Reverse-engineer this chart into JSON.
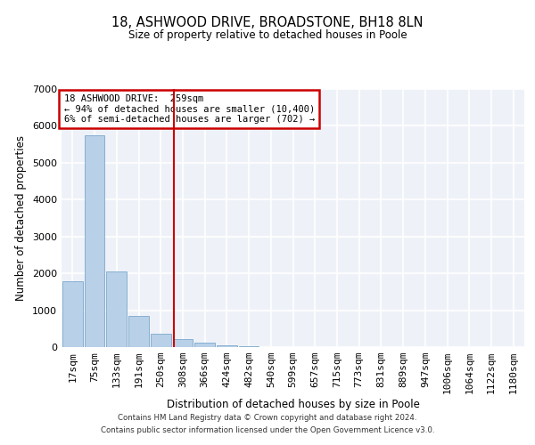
{
  "title": "18, ASHWOOD DRIVE, BROADSTONE, BH18 8LN",
  "subtitle": "Size of property relative to detached houses in Poole",
  "xlabel": "Distribution of detached houses by size in Poole",
  "ylabel": "Number of detached properties",
  "bar_labels": [
    "17sqm",
    "75sqm",
    "133sqm",
    "191sqm",
    "250sqm",
    "308sqm",
    "366sqm",
    "424sqm",
    "482sqm",
    "540sqm",
    "599sqm",
    "657sqm",
    "715sqm",
    "773sqm",
    "831sqm",
    "889sqm",
    "947sqm",
    "1006sqm",
    "1064sqm",
    "1122sqm",
    "1180sqm"
  ],
  "bar_values": [
    1780,
    5750,
    2050,
    840,
    370,
    220,
    110,
    60,
    30,
    10,
    5,
    0,
    0,
    0,
    0,
    0,
    0,
    0,
    0,
    0,
    0
  ],
  "bar_color": "#b8d0e8",
  "bar_edge_color": "#7aa8cc",
  "ylim": [
    0,
    7000
  ],
  "yticks": [
    0,
    1000,
    2000,
    3000,
    4000,
    5000,
    6000,
    7000
  ],
  "property_line_x": 4.58,
  "property_line_color": "#cc0000",
  "annotation_line1": "18 ASHWOOD DRIVE:  259sqm",
  "annotation_line2": "← 94% of detached houses are smaller (10,400)",
  "annotation_line3": "6% of semi-detached houses are larger (702) →",
  "annotation_box_color": "#cc0000",
  "footer_line1": "Contains HM Land Registry data © Crown copyright and database right 2024.",
  "footer_line2": "Contains public sector information licensed under the Open Government Licence v3.0.",
  "bg_color": "#eef2f8",
  "grid_color": "#ffffff",
  "fig_bg": "#ffffff"
}
